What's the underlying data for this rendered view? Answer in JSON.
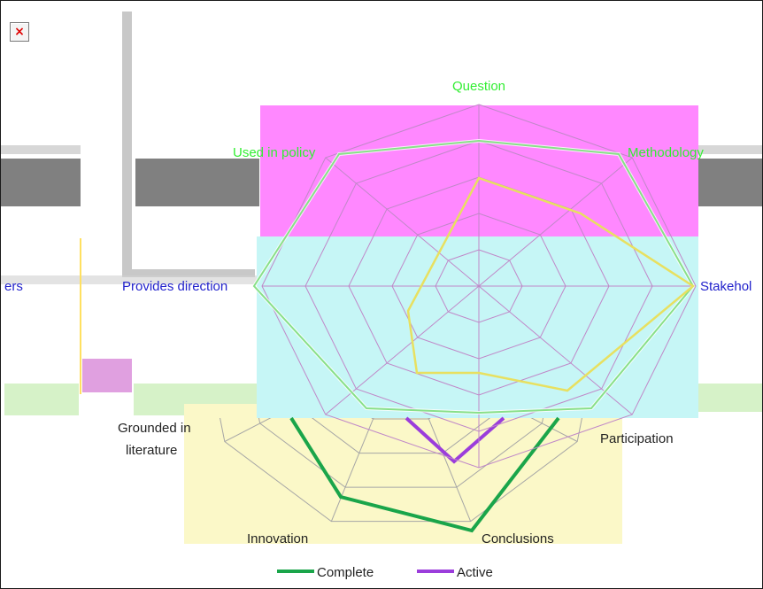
{
  "broken_image_glyph": "×",
  "chart_data": {
    "type": "radar",
    "axes_front": [
      "Question",
      "Methodology",
      "Stakeholders",
      "Participation",
      "Conclusions",
      "Innovation",
      "Grounded in literature",
      "Provides direction",
      "Used in policy"
    ],
    "axes_front_display": {
      "question": "Question",
      "methodology": "Methodology",
      "stakeholders": "Stakehol",
      "provides_direction": "Provides direction",
      "used_in_policy": "Used in policy",
      "left_cut": "ers"
    },
    "axes_back_display": {
      "grounded_line1": "Grounded in",
      "grounded_line2": "literature",
      "participation": "Participation",
      "conclusions": "Conclusions",
      "innovation": "Innovation"
    },
    "scale_rings": 5,
    "series": [
      {
        "name": "Complete",
        "color": "#1aa54a"
      },
      {
        "name": "Active",
        "color": "#9b3ddb"
      }
    ],
    "legend_position": "bottom"
  },
  "colors": {
    "magenta_band": "#ff88ff",
    "cyan_band": "#c6f6f6",
    "yellow_band": "#fbf8c8",
    "grey_bar": "#808080",
    "light_grey": "#c8c8c8",
    "label_green": "#33ee33",
    "label_blue": "#2222cc",
    "label_dark": "#222222",
    "web_grey": "#a6a6a6"
  }
}
